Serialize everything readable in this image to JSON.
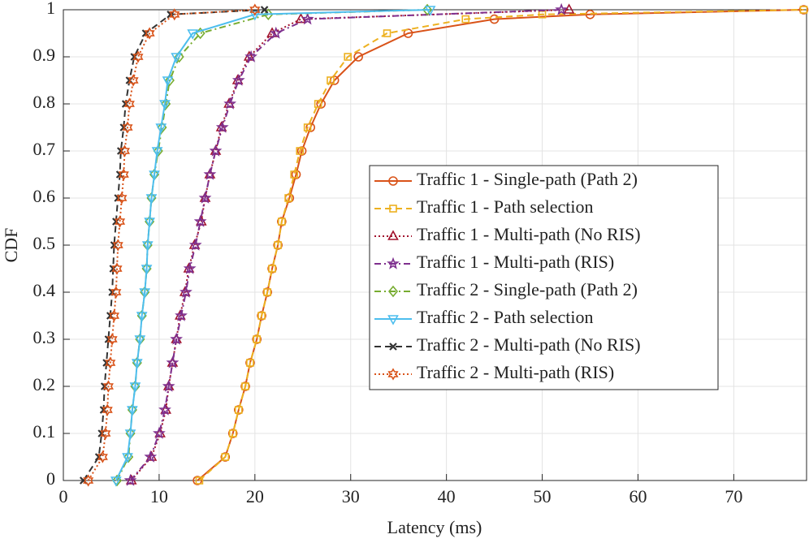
{
  "chart_data": {
    "type": "line",
    "xlabel": "Latency (ms)",
    "ylabel": "CDF",
    "xlim": [
      0,
      77.6
    ],
    "ylim": [
      0,
      1
    ],
    "xticks": [
      0,
      10,
      20,
      30,
      40,
      50,
      60,
      70
    ],
    "yticks": [
      0,
      0.1,
      0.2,
      0.3,
      0.4,
      0.5,
      0.6,
      0.7,
      0.8,
      0.9,
      1
    ],
    "grid": true,
    "legend": "east",
    "series": [
      {
        "name": "Traffic 1 - Single-path (Path 2)",
        "color": "#d95319",
        "linestyle": "solid",
        "marker": "circle",
        "x": [
          14.0,
          16.9,
          17.7,
          18.3,
          19.0,
          19.5,
          20.2,
          20.7,
          21.3,
          21.8,
          22.4,
          22.8,
          23.6,
          24.3,
          24.9,
          25.8,
          26.9,
          28.3,
          30.8,
          36.0,
          45.0,
          55.0,
          77.3
        ],
        "values": [
          0,
          0.05,
          0.1,
          0.15,
          0.2,
          0.25,
          0.3,
          0.35,
          0.4,
          0.45,
          0.5,
          0.55,
          0.6,
          0.65,
          0.7,
          0.75,
          0.8,
          0.85,
          0.9,
          0.95,
          0.98,
          0.99,
          1
        ]
      },
      {
        "name": "Traffic 1 - Path selection",
        "color": "#edb120",
        "linestyle": "dashed",
        "marker": "square",
        "x": [
          14.2,
          16.9,
          17.7,
          18.3,
          19.0,
          19.5,
          20.2,
          20.7,
          21.3,
          21.8,
          22.4,
          22.8,
          23.5,
          24.1,
          24.7,
          25.5,
          26.6,
          27.9,
          29.7,
          33.8,
          42.0,
          50.0,
          77.3
        ],
        "values": [
          0,
          0.05,
          0.1,
          0.15,
          0.2,
          0.25,
          0.3,
          0.35,
          0.4,
          0.45,
          0.5,
          0.55,
          0.6,
          0.65,
          0.7,
          0.75,
          0.8,
          0.85,
          0.9,
          0.95,
          0.98,
          0.99,
          1
        ]
      },
      {
        "name": "Traffic 1 - Multi-path (No RIS)",
        "color": "#a2142f",
        "linestyle": "dotted",
        "marker": "triangle-up",
        "x": [
          7.1,
          9.2,
          10.1,
          10.7,
          11.0,
          11.4,
          11.8,
          12.2,
          12.7,
          13.1,
          13.7,
          14.4,
          14.8,
          15.3,
          15.9,
          16.5,
          17.3,
          18.2,
          19.4,
          21.8,
          24.8,
          52.8
        ],
        "values": [
          0,
          0.05,
          0.1,
          0.15,
          0.2,
          0.25,
          0.3,
          0.35,
          0.4,
          0.45,
          0.5,
          0.55,
          0.6,
          0.65,
          0.7,
          0.75,
          0.8,
          0.85,
          0.9,
          0.95,
          0.98,
          1
        ]
      },
      {
        "name": "Traffic 1 - Multi-path (RIS)",
        "color": "#7e2f8e",
        "linestyle": "dashdot",
        "marker": "star",
        "x": [
          7.0,
          9.1,
          10.0,
          10.6,
          11.0,
          11.4,
          11.8,
          12.3,
          12.8,
          13.2,
          13.8,
          14.3,
          14.8,
          15.3,
          15.9,
          16.6,
          17.4,
          18.3,
          19.6,
          22.2,
          25.5,
          52.0
        ],
        "values": [
          0,
          0.05,
          0.1,
          0.15,
          0.2,
          0.25,
          0.3,
          0.35,
          0.4,
          0.45,
          0.5,
          0.55,
          0.6,
          0.65,
          0.7,
          0.75,
          0.8,
          0.85,
          0.9,
          0.95,
          0.98,
          1
        ]
      },
      {
        "name": "Traffic 2 - Single-path (Path 2)",
        "color": "#77ac30",
        "linestyle": "dashdot",
        "marker": "diamond",
        "x": [
          5.6,
          6.8,
          7.0,
          7.2,
          7.5,
          7.7,
          8.0,
          8.2,
          8.5,
          8.7,
          8.8,
          9.0,
          9.2,
          9.5,
          9.9,
          10.3,
          10.7,
          11.1,
          12.1,
          14.3,
          21.4,
          38.0
        ],
        "values": [
          0,
          0.05,
          0.1,
          0.15,
          0.2,
          0.25,
          0.3,
          0.35,
          0.4,
          0.45,
          0.5,
          0.55,
          0.6,
          0.65,
          0.7,
          0.75,
          0.8,
          0.85,
          0.9,
          0.95,
          0.99,
          1
        ]
      },
      {
        "name": "Traffic 2 - Path selection",
        "color": "#4dbeee",
        "linestyle": "solid",
        "marker": "triangle-down",
        "x": [
          5.5,
          6.7,
          7.0,
          7.2,
          7.5,
          7.7,
          8.0,
          8.2,
          8.5,
          8.7,
          8.8,
          9.0,
          9.2,
          9.5,
          9.8,
          10.2,
          10.6,
          10.9,
          11.8,
          13.5,
          20.0,
          38.3
        ],
        "values": [
          0,
          0.05,
          0.1,
          0.15,
          0.2,
          0.25,
          0.3,
          0.35,
          0.4,
          0.45,
          0.5,
          0.55,
          0.6,
          0.65,
          0.7,
          0.75,
          0.8,
          0.85,
          0.9,
          0.95,
          0.99,
          1
        ]
      },
      {
        "name": "Traffic 2 - Multi-path (No RIS)",
        "color": "#333333",
        "linestyle": "dashed",
        "marker": "x",
        "x": [
          2.1,
          3.7,
          4.0,
          4.2,
          4.3,
          4.5,
          4.7,
          4.9,
          5.1,
          5.2,
          5.3,
          5.5,
          5.7,
          5.9,
          6.0,
          6.3,
          6.5,
          6.9,
          7.4,
          8.6,
          11.2,
          21.0
        ],
        "values": [
          0,
          0.05,
          0.1,
          0.15,
          0.2,
          0.25,
          0.3,
          0.35,
          0.4,
          0.45,
          0.5,
          0.55,
          0.6,
          0.65,
          0.7,
          0.75,
          0.8,
          0.85,
          0.9,
          0.95,
          0.99,
          1
        ]
      },
      {
        "name": "Traffic 2 - Multi-path (RIS)",
        "color": "#d95319",
        "linestyle": "dotted",
        "marker": "hexagram",
        "x": [
          2.6,
          4.1,
          4.4,
          4.6,
          4.7,
          4.9,
          5.1,
          5.3,
          5.5,
          5.6,
          5.7,
          5.9,
          6.1,
          6.3,
          6.4,
          6.7,
          6.9,
          7.3,
          7.8,
          9.0,
          11.6,
          20.0
        ],
        "values": [
          0,
          0.05,
          0.1,
          0.15,
          0.2,
          0.25,
          0.3,
          0.35,
          0.4,
          0.45,
          0.5,
          0.55,
          0.6,
          0.65,
          0.7,
          0.75,
          0.8,
          0.85,
          0.9,
          0.95,
          0.99,
          1
        ]
      }
    ]
  }
}
